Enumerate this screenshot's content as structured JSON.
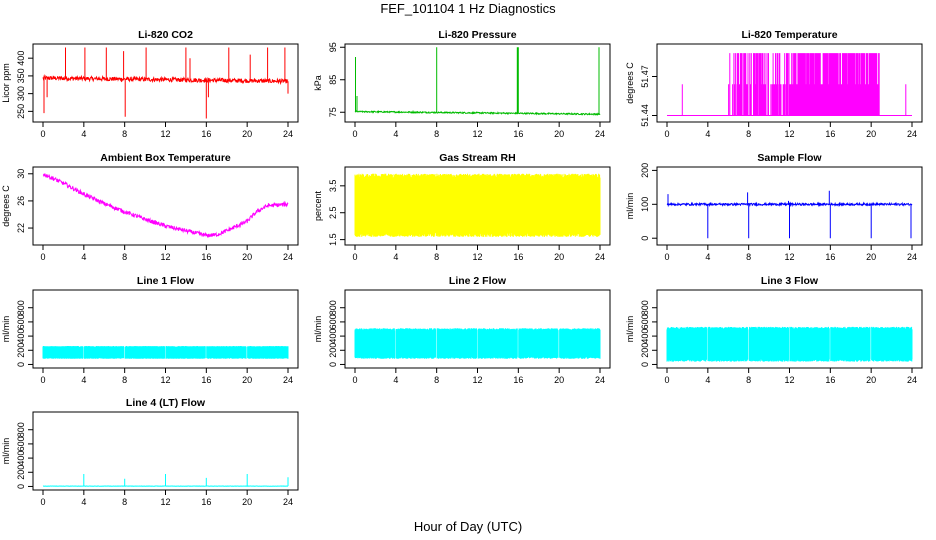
{
  "figure": {
    "title": "FEF_101104  1 Hz Diagnostics",
    "xlabel": "Hour of Day (UTC)"
  },
  "chart_data": [
    {
      "type": "line",
      "title": "Li-820 CO2",
      "ylabel": "Licor ppm",
      "color": "#ff0000",
      "xlim": [
        0,
        24
      ],
      "ylim": [
        220,
        440
      ],
      "xticks": [
        "0",
        "4",
        "8",
        "12",
        "16",
        "20",
        "24"
      ],
      "yticks": [
        250,
        300,
        350,
        400
      ],
      "shape": "spiky_flat",
      "base": 344,
      "end": 335,
      "noise": 6,
      "spikes": [
        [
          0.1,
          245
        ],
        [
          0.4,
          290
        ],
        [
          2.2,
          430
        ],
        [
          4.1,
          430
        ],
        [
          6.2,
          430
        ],
        [
          7.9,
          420
        ],
        [
          8.05,
          235
        ],
        [
          10.1,
          430
        ],
        [
          14.0,
          430
        ],
        [
          14.4,
          400
        ],
        [
          16.0,
          230
        ],
        [
          16.2,
          290
        ],
        [
          18.2,
          430
        ],
        [
          20.3,
          410
        ],
        [
          22.0,
          430
        ],
        [
          23.7,
          430
        ],
        [
          24.0,
          300
        ]
      ]
    },
    {
      "type": "line",
      "title": "Li-820 Pressure",
      "ylabel": "kPa",
      "color": "#00bb00",
      "xlim": [
        0,
        24
      ],
      "ylim": [
        72,
        96
      ],
      "xticks": [
        "0",
        "4",
        "8",
        "12",
        "16",
        "20",
        "24"
      ],
      "yticks": [
        75,
        85,
        95
      ],
      "shape": "spiky_flat",
      "base": 75.2,
      "end": 74.4,
      "noise": 0.2,
      "spikes": [
        [
          0.05,
          92
        ],
        [
          0.2,
          80
        ],
        [
          8.0,
          95
        ],
        [
          15.9,
          95
        ],
        [
          16.0,
          95
        ],
        [
          23.9,
          95
        ]
      ]
    },
    {
      "type": "line",
      "title": "Li-820 Temperature",
      "ylabel": "degrees C",
      "color": "#ff00ff",
      "xlim": [
        0,
        24
      ],
      "ylim": [
        51.435,
        51.495
      ],
      "xticks": [
        "0",
        "4",
        "8",
        "12",
        "16",
        "20",
        "24"
      ],
      "yticks": [
        51.44,
        51.47
      ],
      "shape": "quantized",
      "low": 51.44,
      "mid": 51.464,
      "high": 51.488,
      "segments": [
        [
          6.0,
          6.2,
          0.5
        ],
        [
          6.4,
          13.2,
          0.45
        ],
        [
          13.2,
          14.3,
          1.0
        ],
        [
          14.3,
          15.3,
          0.92
        ],
        [
          15.3,
          17.0,
          1.0
        ],
        [
          17.0,
          18.0,
          0.92
        ],
        [
          18.0,
          20.8,
          0.95
        ],
        [
          23.3,
          23.4,
          0.5
        ]
      ],
      "singles": [
        1.5
      ]
    },
    {
      "type": "line",
      "title": "Ambient Box Temperature",
      "ylabel": "degrees C",
      "color": "#ff00ff",
      "xlim": [
        0,
        24
      ],
      "ylim": [
        19.5,
        31
      ],
      "xticks": [
        "0",
        "4",
        "8",
        "12",
        "16",
        "20",
        "24"
      ],
      "yticks": [
        22,
        26,
        30
      ],
      "shape": "curve",
      "noise": 0.3,
      "points": [
        [
          0,
          30.0
        ],
        [
          2,
          28.6
        ],
        [
          4,
          27.0
        ],
        [
          6,
          25.6
        ],
        [
          8,
          24.4
        ],
        [
          10,
          23.3
        ],
        [
          12,
          22.3
        ],
        [
          14,
          21.6
        ],
        [
          16,
          20.9
        ],
        [
          17,
          21.0
        ],
        [
          18,
          21.6
        ],
        [
          20,
          23.0
        ],
        [
          21,
          24.5
        ],
        [
          22,
          25.3
        ],
        [
          24,
          25.5
        ]
      ]
    },
    {
      "type": "line",
      "title": "Gas Stream RH",
      "ylabel": "percent",
      "color": "#ffff00",
      "xlim": [
        0,
        24
      ],
      "ylim": [
        1.3,
        4.2
      ],
      "xticks": [
        "0",
        "4",
        "8",
        "12",
        "16",
        "20",
        "24"
      ],
      "yticks": [
        1.5,
        2.5,
        3.5
      ],
      "shape": "band",
      "top": 3.95,
      "bottom": 1.6
    },
    {
      "type": "line",
      "title": "Sample Flow",
      "ylabel": "ml/min",
      "color": "#0000ff",
      "xlim": [
        0,
        24
      ],
      "ylim": [
        -20,
        210
      ],
      "xticks": [
        "0",
        "4",
        "8",
        "12",
        "16",
        "20",
        "24"
      ],
      "yticks": [
        0,
        100,
        200
      ],
      "shape": "spiky_flat",
      "base": 100,
      "end": 100,
      "noise": 3,
      "spikes": [
        [
          0.1,
          130
        ],
        [
          4.0,
          0
        ],
        [
          7.9,
          135
        ],
        [
          8.0,
          0
        ],
        [
          11.9,
          110
        ],
        [
          12.0,
          0
        ],
        [
          15.9,
          140
        ],
        [
          16.0,
          0
        ],
        [
          20.0,
          0
        ],
        [
          23.9,
          0
        ]
      ]
    },
    {
      "type": "line",
      "title": "Line 1 Flow",
      "ylabel": "ml/min",
      "color": "#00ffff",
      "xlim": [
        0,
        24
      ],
      "ylim": [
        -50,
        1050
      ],
      "xticks": [
        "0",
        "4",
        "8",
        "12",
        "16",
        "20",
        "24"
      ],
      "yticks": [
        0,
        200,
        400,
        600,
        800
      ],
      "shape": "band",
      "top": 260,
      "bottom": 80,
      "gaps": [
        3.9,
        7.9,
        11.9,
        15.9,
        19.9
      ]
    },
    {
      "type": "line",
      "title": "Line 2 Flow",
      "ylabel": "ml/min",
      "color": "#00ffff",
      "xlim": [
        0,
        24
      ],
      "ylim": [
        -50,
        1050
      ],
      "xticks": [
        "0",
        "4",
        "8",
        "12",
        "16",
        "20",
        "24"
      ],
      "yticks": [
        0,
        200,
        400,
        600,
        800
      ],
      "shape": "band",
      "top": 510,
      "bottom": 80,
      "gaps": [
        3.9,
        7.9,
        11.9,
        15.9,
        19.9
      ]
    },
    {
      "type": "line",
      "title": "Line 3 Flow",
      "ylabel": "ml/min",
      "color": "#00ffff",
      "xlim": [
        0,
        24
      ],
      "ylim": [
        -50,
        1050
      ],
      "xticks": [
        "0",
        "4",
        "8",
        "12",
        "16",
        "20",
        "24"
      ],
      "yticks": [
        0,
        200,
        400,
        600,
        800
      ],
      "shape": "band",
      "top": 530,
      "bottom": 40,
      "gaps": [
        3.9,
        7.9,
        11.9,
        15.9,
        19.9
      ]
    },
    {
      "type": "line",
      "title": "Line 4 (LT) Flow",
      "ylabel": "ml/min",
      "color": "#00ffff",
      "xlim": [
        0,
        24
      ],
      "ylim": [
        -50,
        1050
      ],
      "xticks": [
        "0",
        "4",
        "8",
        "12",
        "16",
        "20",
        "24"
      ],
      "yticks": [
        0,
        200,
        400,
        600,
        800
      ],
      "shape": "spiky_flat",
      "base": 5,
      "end": 5,
      "noise": 2,
      "spikes": [
        [
          4.0,
          175
        ],
        [
          8.0,
          110
        ],
        [
          12.0,
          175
        ],
        [
          16.0,
          120
        ],
        [
          20.0,
          175
        ],
        [
          24.0,
          130
        ]
      ]
    }
  ]
}
